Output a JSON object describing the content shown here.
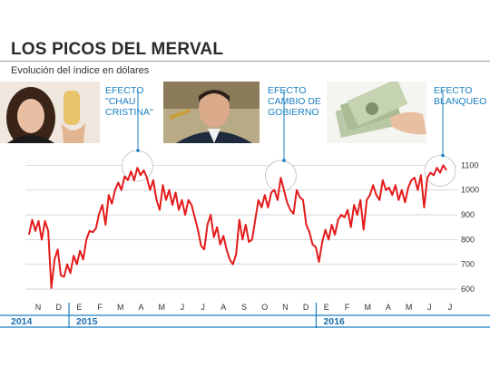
{
  "header": {
    "title": "LOS PICOS DEL MERVAL",
    "subtitle": "Evolución del índice en dólares"
  },
  "annotations": [
    {
      "label": "EFECTO \"CHAU CRISTINA\"",
      "lines": [
        "EFECTO",
        "\"CHAU",
        "CRISTINA\""
      ]
    },
    {
      "label": "EFECTO CAMBIO DE GOBIERNO",
      "lines": [
        "EFECTO",
        "CAMBIO DE",
        "GOBIERNO"
      ]
    },
    {
      "label": "EFECTO BLANQUEO",
      "lines": [
        "EFECTO",
        "BLANQUEO"
      ]
    }
  ],
  "colors": {
    "line": "#e31b1b",
    "accent": "#1a7fc1",
    "grid": "#cfcfcf",
    "highlight": "#ffffff"
  },
  "chart_data": {
    "type": "line",
    "title": "LOS PICOS DEL MERVAL",
    "subtitle": "Evolución del índice en dólares",
    "xlabel": "",
    "ylabel": "",
    "ylim": [
      560,
      1160
    ],
    "yticks": [
      600,
      700,
      800,
      900,
      1000,
      1100
    ],
    "grid": "horizontal",
    "months": [
      "N",
      "D",
      "E",
      "F",
      "M",
      "A",
      "M",
      "J",
      "J",
      "A",
      "S",
      "O",
      "N",
      "D",
      "E",
      "F",
      "M",
      "A",
      "M",
      "J",
      "J"
    ],
    "years": [
      "2014",
      "2015",
      "2016"
    ],
    "series": [
      {
        "values": [
          820,
          880,
          835,
          875,
          800,
          875,
          835,
          605,
          720,
          760,
          655,
          650,
          700,
          665,
          735,
          700,
          755,
          720,
          800,
          835,
          830,
          845,
          905,
          940,
          860,
          980,
          945,
          1000,
          1030,
          1000,
          1055,
          1040,
          1075,
          1040,
          1090,
          1060,
          1080,
          1050,
          1000,
          1040,
          960,
          920,
          1020,
          960,
          1000,
          940,
          990,
          920,
          960,
          900,
          960,
          940,
          890,
          840,
          775,
          760,
          860,
          900,
          810,
          850,
          780,
          815,
          760,
          720,
          700,
          740,
          880,
          800,
          860,
          790,
          800,
          880,
          960,
          930,
          980,
          930,
          990,
          1000,
          960,
          1050,
          1000,
          950,
          920,
          905,
          1000,
          970,
          960,
          860,
          830,
          780,
          770,
          710,
          790,
          840,
          800,
          860,
          820,
          880,
          900,
          890,
          920,
          850,
          940,
          900,
          960,
          840,
          960,
          980,
          1020,
          980,
          960,
          1040,
          1000,
          1010,
          980,
          1020,
          960,
          1000,
          950,
          1010,
          1040,
          1050,
          1000,
          1060,
          930,
          1050,
          1070,
          1060,
          1090,
          1070,
          1100,
          1080
        ]
      }
    ]
  }
}
